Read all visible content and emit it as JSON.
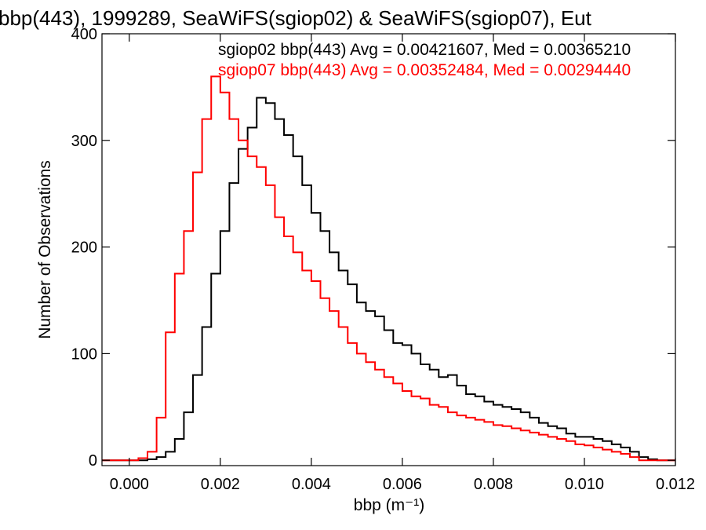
{
  "chart_data": {
    "type": "line",
    "title": "bbp(443), 1999289, SeaWiFS(sgiop02) & SeaWiFS(sgiop07), Eut",
    "xlabel": "bbp (m⁻¹)",
    "ylabel": "Number of Observations",
    "xlim": [
      -0.0006,
      0.012
    ],
    "ylim": [
      -5,
      400
    ],
    "xticks": [
      {
        "value": 0.0,
        "label": "0.000"
      },
      {
        "value": 0.002,
        "label": "0.002"
      },
      {
        "value": 0.004,
        "label": "0.004"
      },
      {
        "value": 0.006,
        "label": "0.006"
      },
      {
        "value": 0.008,
        "label": "0.008"
      },
      {
        "value": 0.01,
        "label": "0.010"
      },
      {
        "value": 0.012,
        "label": "0.012"
      }
    ],
    "yticks": [
      {
        "value": 0,
        "label": "0"
      },
      {
        "value": 100,
        "label": "100"
      },
      {
        "value": 200,
        "label": "200"
      },
      {
        "value": 300,
        "label": "300"
      },
      {
        "value": 400,
        "label": "400"
      }
    ],
    "legend_position": "top-right",
    "grid": false,
    "series": [
      {
        "name": "sgiop02",
        "legend": "sgiop02 bbp(443) Avg = 0.00421607, Med = 0.00365210",
        "color": "#000000",
        "x": [
          -0.0006,
          0.0,
          0.0004,
          0.0006,
          0.0008,
          0.001,
          0.0012,
          0.0014,
          0.0016,
          0.0018,
          0.002,
          0.0022,
          0.0024,
          0.0026,
          0.0028,
          0.003,
          0.0032,
          0.0034,
          0.0036,
          0.0038,
          0.004,
          0.0042,
          0.0044,
          0.0046,
          0.0048,
          0.005,
          0.0052,
          0.0054,
          0.0056,
          0.0058,
          0.006,
          0.0062,
          0.0064,
          0.0066,
          0.0068,
          0.007,
          0.0072,
          0.0074,
          0.0076,
          0.0078,
          0.008,
          0.0082,
          0.0084,
          0.0086,
          0.0088,
          0.009,
          0.0092,
          0.0094,
          0.0096,
          0.0098,
          0.01,
          0.0102,
          0.0104,
          0.0106,
          0.0108,
          0.011,
          0.0112,
          0.0114,
          0.0116,
          0.012
        ],
        "values": [
          0,
          0,
          1,
          3,
          8,
          20,
          45,
          80,
          125,
          175,
          215,
          260,
          292,
          312,
          340,
          335,
          320,
          305,
          285,
          258,
          232,
          215,
          195,
          178,
          165,
          148,
          140,
          135,
          122,
          110,
          108,
          100,
          90,
          85,
          78,
          80,
          70,
          62,
          60,
          55,
          52,
          50,
          48,
          45,
          40,
          35,
          32,
          30,
          25,
          22,
          22,
          20,
          18,
          15,
          12,
          8,
          3,
          1,
          0,
          0
        ]
      },
      {
        "name": "sgiop07",
        "legend": "sgiop07 bbp(443) Avg = 0.00352484, Med = 0.00294440",
        "color": "#ff0000",
        "x": [
          -0.0006,
          0.0,
          0.0002,
          0.0004,
          0.0006,
          0.0008,
          0.001,
          0.0012,
          0.0014,
          0.0016,
          0.0018,
          0.002,
          0.0022,
          0.0024,
          0.0026,
          0.0028,
          0.003,
          0.0032,
          0.0034,
          0.0036,
          0.0038,
          0.004,
          0.0042,
          0.0044,
          0.0046,
          0.0048,
          0.005,
          0.0052,
          0.0054,
          0.0056,
          0.0058,
          0.006,
          0.0062,
          0.0064,
          0.0066,
          0.0068,
          0.007,
          0.0072,
          0.0074,
          0.0076,
          0.0078,
          0.008,
          0.0082,
          0.0084,
          0.0086,
          0.0088,
          0.009,
          0.0092,
          0.0094,
          0.0096,
          0.0098,
          0.01,
          0.0102,
          0.0104,
          0.0106,
          0.0108,
          0.011,
          0.0112,
          0.012
        ],
        "values": [
          0,
          0,
          2,
          8,
          40,
          120,
          175,
          215,
          270,
          320,
          360,
          345,
          320,
          300,
          285,
          275,
          258,
          228,
          210,
          195,
          178,
          168,
          152,
          140,
          125,
          110,
          100,
          92,
          85,
          78,
          72,
          65,
          60,
          58,
          52,
          50,
          45,
          42,
          40,
          38,
          36,
          33,
          32,
          30,
          28,
          26,
          24,
          22,
          20,
          18,
          15,
          14,
          12,
          10,
          8,
          6,
          3,
          0,
          0
        ]
      }
    ]
  }
}
